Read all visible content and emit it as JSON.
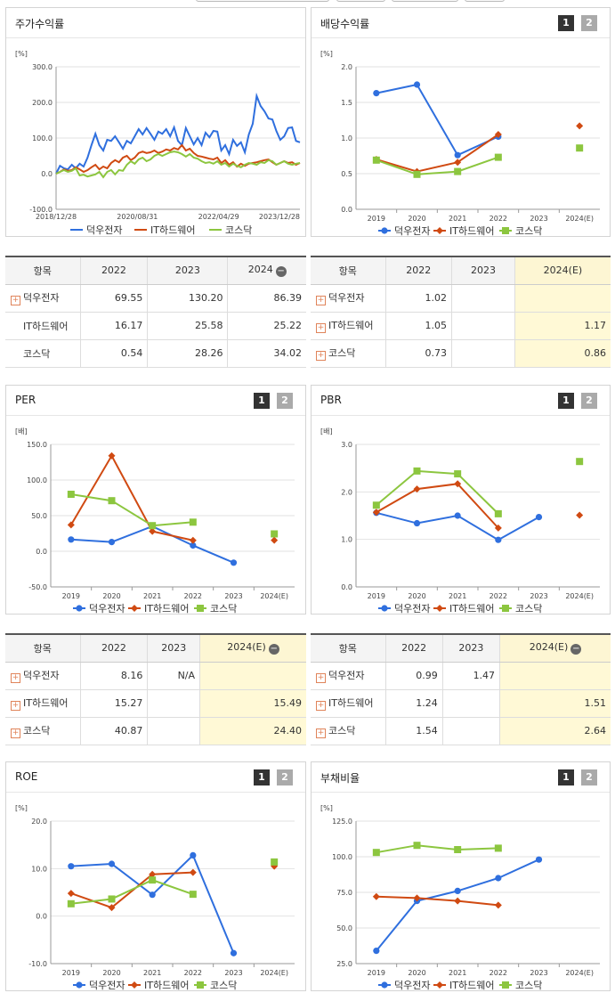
{
  "colors": {
    "s1": "#2f6fde",
    "s2": "#d04a12",
    "s3": "#8cc63f"
  },
  "legend": [
    "덕우전자",
    "IT하드웨어",
    "코스닥"
  ],
  "page_buttons": [
    "1",
    "2"
  ],
  "panels": {
    "price": {
      "title": "주가수익률",
      "unit": "[%]"
    },
    "div": {
      "title": "배당수익률",
      "unit": "[%]"
    },
    "per": {
      "title": "PER",
      "unit": "[배]"
    },
    "pbr": {
      "title": "PBR",
      "unit": "[배]"
    },
    "roe": {
      "title": "ROE",
      "unit": "[%]"
    },
    "debt": {
      "title": "부채비율",
      "unit": "[%]"
    }
  },
  "chart_data": [
    {
      "id": "price",
      "type": "line",
      "title": "주가수익률",
      "ylabel": "[%]",
      "ylim": [
        -100,
        300
      ],
      "yticks": [
        "300.0",
        "200.0",
        "100.0",
        "0.0",
        "-100.0"
      ],
      "xticks": [
        "2018/12/28",
        "2020/08/31",
        "2022/04/29",
        "2023/12/28"
      ],
      "series": [
        {
          "name": "덕우전자",
          "values": [
            0,
            22,
            15,
            12,
            25,
            15,
            28,
            20,
            45,
            80,
            112,
            80,
            65,
            95,
            92,
            105,
            88,
            70,
            92,
            85,
            105,
            125,
            110,
            128,
            112,
            95,
            118,
            112,
            125,
            105,
            130,
            92,
            80,
            128,
            105,
            82,
            100,
            80,
            115,
            102,
            120,
            118,
            65,
            80,
            55,
            95,
            78,
            88,
            60,
            110,
            140,
            218,
            190,
            175,
            155,
            152,
            120,
            95,
            105,
            128,
            130,
            92,
            88
          ]
        },
        {
          "name": "IT하드웨어",
          "values": [
            0,
            5,
            12,
            8,
            10,
            18,
            12,
            5,
            10,
            18,
            25,
            12,
            20,
            15,
            30,
            38,
            32,
            45,
            50,
            38,
            45,
            58,
            62,
            58,
            60,
            65,
            58,
            62,
            68,
            65,
            72,
            68,
            80,
            65,
            70,
            58,
            50,
            48,
            45,
            42,
            40,
            45,
            30,
            38,
            25,
            32,
            20,
            28,
            22,
            28,
            30,
            32,
            35,
            38,
            40,
            32,
            25,
            30,
            35,
            30,
            32,
            25,
            30
          ]
        },
        {
          "name": "코스닥",
          "values": [
            0,
            5,
            10,
            5,
            8,
            15,
            -5,
            -3,
            -8,
            -5,
            -2,
            5,
            -10,
            5,
            10,
            -2,
            10,
            8,
            25,
            35,
            28,
            40,
            45,
            35,
            40,
            50,
            55,
            50,
            55,
            60,
            62,
            60,
            55,
            48,
            55,
            45,
            42,
            35,
            30,
            32,
            28,
            35,
            25,
            30,
            20,
            28,
            22,
            18,
            25,
            30,
            28,
            25,
            32,
            30,
            38,
            35,
            25,
            30,
            35,
            28,
            25,
            28,
            30
          ]
        }
      ]
    },
    {
      "id": "div",
      "type": "line",
      "title": "배당수익률",
      "ylabel": "[%]",
      "ylim": [
        0,
        2
      ],
      "yticks": [
        "2.0",
        "1.5",
        "1.0",
        "0.5",
        "0.0"
      ],
      "categories": [
        "2019",
        "2020",
        "2021",
        "2022",
        "2023",
        "2024(E)"
      ],
      "series": [
        {
          "name": "덕우전자",
          "values": [
            1.63,
            1.75,
            0.76,
            1.02,
            null,
            null
          ]
        },
        {
          "name": "IT하드웨어",
          "values": [
            0.7,
            0.53,
            0.66,
            1.05,
            null,
            1.17
          ]
        },
        {
          "name": "코스닥",
          "values": [
            0.69,
            0.49,
            0.53,
            0.73,
            null,
            0.86
          ]
        }
      ]
    },
    {
      "id": "per",
      "type": "line",
      "title": "PER",
      "ylabel": "[배]",
      "ylim": [
        -50,
        150
      ],
      "yticks": [
        "150.0",
        "100.0",
        "50.0",
        "0.0",
        "-50.0"
      ],
      "categories": [
        "2019",
        "2020",
        "2021",
        "2022",
        "2023",
        "2024(E)"
      ],
      "series": [
        {
          "name": "덕우전자",
          "values": [
            16.5,
            13,
            35,
            8.16,
            -16,
            null
          ]
        },
        {
          "name": "IT하드웨어",
          "values": [
            37,
            134,
            28,
            15.27,
            null,
            15.49
          ]
        },
        {
          "name": "코스닥",
          "values": [
            80,
            71,
            36,
            40.87,
            null,
            24.4
          ]
        }
      ]
    },
    {
      "id": "pbr",
      "type": "line",
      "title": "PBR",
      "ylabel": "[배]",
      "ylim": [
        0,
        3
      ],
      "yticks": [
        "3.0",
        "2.0",
        "1.0",
        "0.0"
      ],
      "categories": [
        "2019",
        "2020",
        "2021",
        "2022",
        "2023",
        "2024(E)"
      ],
      "series": [
        {
          "name": "덕우전자",
          "values": [
            1.56,
            1.34,
            1.5,
            0.99,
            1.47,
            null
          ]
        },
        {
          "name": "IT하드웨어",
          "values": [
            1.57,
            2.06,
            2.17,
            1.24,
            null,
            1.51
          ]
        },
        {
          "name": "코스닥",
          "values": [
            1.72,
            2.44,
            2.38,
            1.54,
            null,
            2.64
          ]
        }
      ]
    },
    {
      "id": "roe",
      "type": "line",
      "title": "ROE",
      "ylabel": "[%]",
      "ylim": [
        -10,
        20
      ],
      "yticks": [
        "20.0",
        "10.0",
        "0.0",
        "-10.0"
      ],
      "categories": [
        "2019",
        "2020",
        "2021",
        "2022",
        "2023",
        "2024(E)"
      ],
      "series": [
        {
          "name": "덕우전자",
          "values": [
            10.5,
            11.0,
            4.5,
            12.8,
            -7.8,
            null
          ]
        },
        {
          "name": "IT하드웨어",
          "values": [
            4.8,
            1.8,
            8.8,
            9.2,
            null,
            10.5
          ]
        },
        {
          "name": "코스닥",
          "values": [
            2.6,
            3.6,
            7.6,
            4.6,
            null,
            11.4
          ]
        }
      ]
    },
    {
      "id": "debt",
      "type": "line",
      "title": "부채비율",
      "ylabel": "[%]",
      "ylim": [
        25,
        125
      ],
      "yticks": [
        "125.0",
        "100.0",
        "75.0",
        "50.0",
        "25.0"
      ],
      "categories": [
        "2019",
        "2020",
        "2021",
        "2022",
        "2023",
        "2024(E)"
      ],
      "series": [
        {
          "name": "덕우전자",
          "values": [
            34,
            69,
            76,
            85,
            98,
            null
          ]
        },
        {
          "name": "IT하드웨어",
          "values": [
            72,
            71,
            69,
            66,
            null,
            null
          ]
        },
        {
          "name": "코스닥",
          "values": [
            103,
            108,
            105,
            106,
            null,
            null
          ]
        }
      ]
    }
  ],
  "tables": {
    "price": {
      "headers": [
        "항목",
        "2022",
        "2023",
        "2024"
      ],
      "rows": [
        {
          "label": "덕우전자",
          "v": [
            "69.55",
            "130.20",
            "86.39"
          ]
        },
        {
          "label": "IT하드웨어",
          "v": [
            "16.17",
            "25.58",
            "25.22"
          ]
        },
        {
          "label": "코스닥",
          "v": [
            "0.54",
            "28.26",
            "34.02"
          ]
        }
      ]
    },
    "div": {
      "headers": [
        "항목",
        "2022",
        "2023",
        "2024(E)"
      ],
      "rows": [
        {
          "label": "덕우전자",
          "v": [
            "1.02",
            "",
            ""
          ]
        },
        {
          "label": "IT하드웨어",
          "v": [
            "1.05",
            "",
            "1.17"
          ]
        },
        {
          "label": "코스닥",
          "v": [
            "0.73",
            "",
            "0.86"
          ]
        }
      ]
    },
    "per": {
      "headers": [
        "항목",
        "2022",
        "2023",
        "2024(E)"
      ],
      "rows": [
        {
          "label": "덕우전자",
          "v": [
            "8.16",
            "N/A",
            ""
          ]
        },
        {
          "label": "IT하드웨어",
          "v": [
            "15.27",
            "",
            "15.49"
          ]
        },
        {
          "label": "코스닥",
          "v": [
            "40.87",
            "",
            "24.40"
          ]
        }
      ]
    },
    "pbr": {
      "headers": [
        "항목",
        "2022",
        "2023",
        "2024(E)"
      ],
      "rows": [
        {
          "label": "덕우전자",
          "v": [
            "0.99",
            "1.47",
            ""
          ]
        },
        {
          "label": "IT하드웨어",
          "v": [
            "1.24",
            "",
            "1.51"
          ]
        },
        {
          "label": "코스닥",
          "v": [
            "1.54",
            "",
            "2.64"
          ]
        }
      ]
    }
  }
}
